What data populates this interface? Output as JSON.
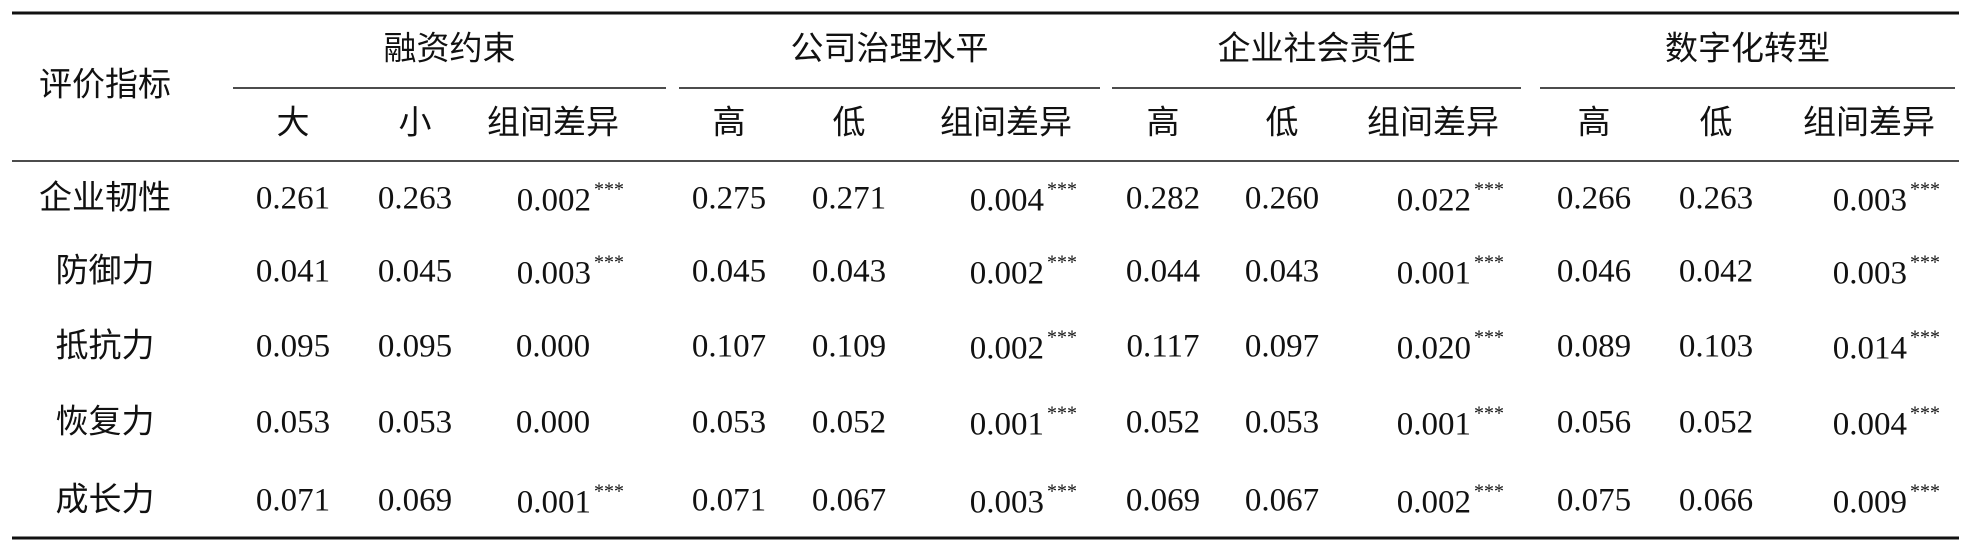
{
  "table": {
    "header": {
      "corner": "评价指标",
      "groups": [
        {
          "title": "融资约束",
          "columns": [
            "大",
            "小",
            "组间差异"
          ]
        },
        {
          "title": "公司治理水平",
          "columns": [
            "高",
            "低",
            "组间差异"
          ]
        },
        {
          "title": "企业社会责任",
          "columns": [
            "高",
            "低",
            "组间差异"
          ]
        },
        {
          "title": "数字化转型",
          "columns": [
            "高",
            "低",
            "组间差异"
          ]
        }
      ]
    },
    "rows": [
      {
        "label": "企业韧性",
        "cells": [
          {
            "text": "0.261"
          },
          {
            "text": "0.263"
          },
          {
            "text": "0.002",
            "sig": "***"
          },
          {
            "text": "0.275"
          },
          {
            "text": "0.271"
          },
          {
            "text": "0.004",
            "sig": "***"
          },
          {
            "text": "0.282"
          },
          {
            "text": "0.260"
          },
          {
            "text": "0.022",
            "sig": "***"
          },
          {
            "text": "0.266"
          },
          {
            "text": "0.263"
          },
          {
            "text": "0.003",
            "sig": "***"
          }
        ]
      },
      {
        "label": "防御力",
        "cells": [
          {
            "text": "0.041"
          },
          {
            "text": "0.045"
          },
          {
            "text": "0.003",
            "sig": "***"
          },
          {
            "text": "0.045"
          },
          {
            "text": "0.043"
          },
          {
            "text": "0.002",
            "sig": "***"
          },
          {
            "text": "0.044"
          },
          {
            "text": "0.043"
          },
          {
            "text": "0.001",
            "sig": "***"
          },
          {
            "text": "0.046"
          },
          {
            "text": "0.042"
          },
          {
            "text": "0.003",
            "sig": "***"
          }
        ]
      },
      {
        "label": "抵抗力",
        "cells": [
          {
            "text": "0.095"
          },
          {
            "text": "0.095"
          },
          {
            "text": "0.000"
          },
          {
            "text": "0.107"
          },
          {
            "text": "0.109"
          },
          {
            "text": "0.002",
            "sig": "***"
          },
          {
            "text": "0.117"
          },
          {
            "text": "0.097"
          },
          {
            "text": "0.020",
            "sig": "***"
          },
          {
            "text": "0.089"
          },
          {
            "text": "0.103"
          },
          {
            "text": "0.014",
            "sig": "***"
          }
        ]
      },
      {
        "label": "恢复力",
        "cells": [
          {
            "text": "0.053"
          },
          {
            "text": "0.053"
          },
          {
            "text": "0.000"
          },
          {
            "text": "0.053"
          },
          {
            "text": "0.052"
          },
          {
            "text": "0.001",
            "sig": "***"
          },
          {
            "text": "0.052"
          },
          {
            "text": "0.053"
          },
          {
            "text": "0.001",
            "sig": "***"
          },
          {
            "text": "0.056"
          },
          {
            "text": "0.052"
          },
          {
            "text": "0.004",
            "sig": "***"
          }
        ]
      },
      {
        "label": "成长力",
        "cells": [
          {
            "text": "0.071"
          },
          {
            "text": "0.069"
          },
          {
            "text": "0.001",
            "sig": "***"
          },
          {
            "text": "0.071"
          },
          {
            "text": "0.067"
          },
          {
            "text": "0.003",
            "sig": "***"
          },
          {
            "text": "0.069"
          },
          {
            "text": "0.067"
          },
          {
            "text": "0.002",
            "sig": "***"
          },
          {
            "text": "0.075"
          },
          {
            "text": "0.066"
          },
          {
            "text": "0.009",
            "sig": "***"
          }
        ]
      }
    ]
  }
}
